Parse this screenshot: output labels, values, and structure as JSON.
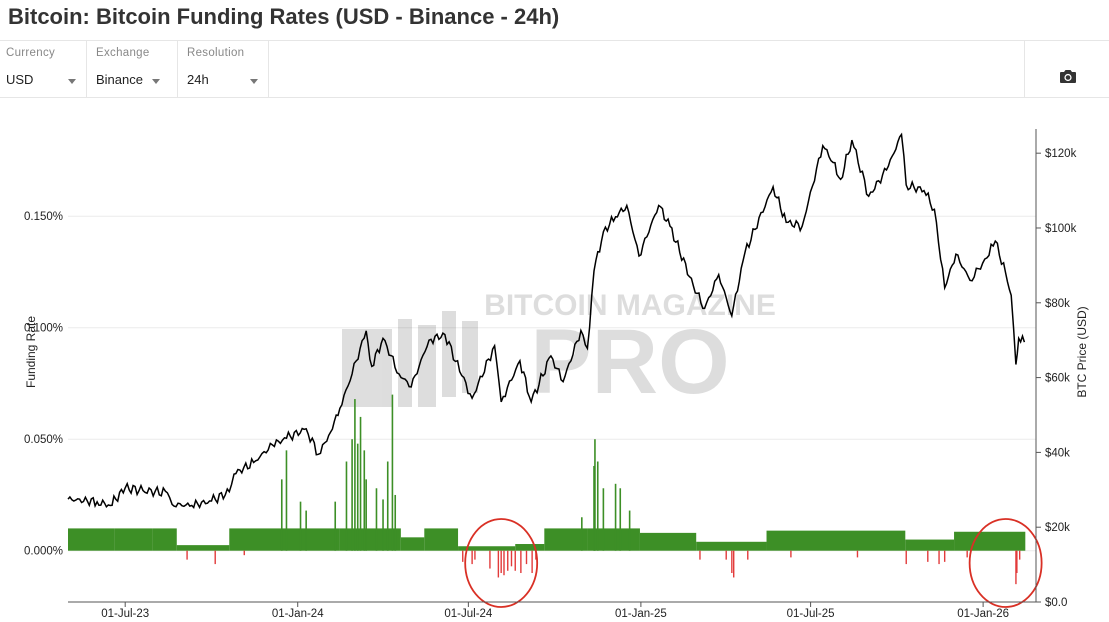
{
  "page_title": "Bitcoin: Bitcoin Funding Rates (USD - Binance - 24h)",
  "controls": [
    {
      "label": "Currency",
      "value": "USD"
    },
    {
      "label": "Exchange",
      "value": "Binance"
    },
    {
      "label": "Resolution",
      "value": "24h"
    }
  ],
  "camera_icon": "camera-icon",
  "watermark": {
    "line1": "BITCOIN MAGAZINE",
    "line2": "PRO"
  },
  "colors": {
    "positive": "#3d8f26",
    "negative": "#e23b3b",
    "price": "#000000",
    "highlight": "#d93025"
  },
  "chart_data": {
    "type": "bar+line",
    "title": "Bitcoin: Bitcoin Funding Rates (USD - Binance - 24h)",
    "ylabel_left": "Funding Rate",
    "ylabel_right": "BTC Price (USD)",
    "x_ticks": [
      "01-Jul-23",
      "01-Jan-24",
      "01-Jul-24",
      "01-Jan-25",
      "01-Jul-25",
      "01-Jan-26"
    ],
    "y_left_ticks": [
      "0.000%",
      "0.050%",
      "0.100%",
      "0.150%"
    ],
    "y_left_range_pct": [
      -0.023,
      0.19
    ],
    "y_right_ticks": [
      "$0.0",
      "$20k",
      "$40k",
      "$60k",
      "$80k",
      "$100k",
      "$120k"
    ],
    "y_right_range_usd": [
      0,
      127000
    ],
    "x_range": [
      "2023-05-01",
      "2026-02-20"
    ],
    "grid": true,
    "btc_price": {
      "name": "BTC Price (USD)",
      "points": [
        [
          "2023-05-01",
          27500
        ],
        [
          "2023-06-01",
          26800
        ],
        [
          "2023-06-15",
          25800
        ],
        [
          "2023-07-01",
          30500
        ],
        [
          "2023-07-20",
          29800
        ],
        [
          "2023-08-15",
          29200
        ],
        [
          "2023-08-20",
          26100
        ],
        [
          "2023-09-10",
          25800
        ],
        [
          "2023-10-01",
          27000
        ],
        [
          "2023-10-20",
          29500
        ],
        [
          "2023-10-25",
          34200
        ],
        [
          "2023-11-15",
          37300
        ],
        [
          "2023-12-05",
          42000
        ],
        [
          "2023-12-20",
          43800
        ],
        [
          "2024-01-10",
          46300
        ],
        [
          "2024-01-23",
          39500
        ],
        [
          "2024-02-01",
          43000
        ],
        [
          "2024-02-15",
          51800
        ],
        [
          "2024-02-28",
          61000
        ],
        [
          "2024-03-14",
          72500
        ],
        [
          "2024-03-20",
          63000
        ],
        [
          "2024-04-01",
          70500
        ],
        [
          "2024-04-18",
          61000
        ],
        [
          "2024-05-01",
          57500
        ],
        [
          "2024-05-20",
          70000
        ],
        [
          "2024-06-06",
          71500
        ],
        [
          "2024-06-24",
          60500
        ],
        [
          "2024-07-05",
          54500
        ],
        [
          "2024-07-29",
          68500
        ],
        [
          "2024-08-05",
          53500
        ],
        [
          "2024-08-25",
          64500
        ],
        [
          "2024-09-06",
          53500
        ],
        [
          "2024-09-27",
          65800
        ],
        [
          "2024-10-10",
          58900
        ],
        [
          "2024-10-29",
          72600
        ],
        [
          "2024-11-05",
          67800
        ],
        [
          "2024-11-12",
          88500
        ],
        [
          "2024-11-22",
          99000
        ],
        [
          "2024-12-05",
          103000
        ],
        [
          "2024-12-17",
          106000
        ],
        [
          "2024-12-30",
          92500
        ],
        [
          "2025-01-20",
          106000
        ],
        [
          "2025-02-01",
          100500
        ],
        [
          "2025-02-26",
          84500
        ],
        [
          "2025-03-10",
          78500
        ],
        [
          "2025-03-25",
          87500
        ],
        [
          "2025-04-08",
          76500
        ],
        [
          "2025-04-22",
          93500
        ],
        [
          "2025-05-22",
          111000
        ],
        [
          "2025-06-05",
          101500
        ],
        [
          "2025-06-22",
          100500
        ],
        [
          "2025-07-14",
          122000
        ],
        [
          "2025-07-25",
          117500
        ],
        [
          "2025-08-02",
          113000
        ],
        [
          "2025-08-14",
          123500
        ],
        [
          "2025-09-01",
          108500
        ],
        [
          "2025-09-20",
          115500
        ],
        [
          "2025-10-06",
          125000
        ],
        [
          "2025-10-11",
          111500
        ],
        [
          "2025-10-30",
          110000
        ],
        [
          "2025-11-10",
          105000
        ],
        [
          "2025-11-21",
          84000
        ],
        [
          "2025-12-03",
          93000
        ],
        [
          "2025-12-18",
          86000
        ],
        [
          "2026-01-05",
          92000
        ],
        [
          "2026-01-14",
          96500
        ],
        [
          "2026-01-25",
          88000
        ],
        [
          "2026-01-31",
          82000
        ],
        [
          "2026-02-05",
          63500
        ],
        [
          "2026-02-08",
          70500
        ],
        [
          "2026-02-14",
          69500
        ]
      ]
    },
    "funding_rate": {
      "name": "Funding Rate",
      "segments": [
        [
          "2023-05-01",
          "2023-06-20",
          0.01
        ],
        [
          "2023-06-20",
          "2023-07-30",
          0.01
        ],
        [
          "2023-07-30",
          "2023-08-25",
          0.01
        ],
        [
          "2023-08-25",
          "2023-10-20",
          0.0025
        ],
        [
          "2023-10-20",
          "2024-02-15",
          0.01
        ],
        [
          "2024-02-15",
          "2024-04-20",
          0.01
        ],
        [
          "2024-04-20",
          "2024-05-15",
          0.006
        ],
        [
          "2024-05-15",
          "2024-06-20",
          0.01
        ],
        [
          "2024-06-20",
          "2024-08-20",
          0.002
        ],
        [
          "2024-08-20",
          "2024-09-20",
          0.003
        ],
        [
          "2024-09-20",
          "2024-11-05",
          0.01
        ],
        [
          "2024-11-05",
          "2024-12-31",
          0.01
        ],
        [
          "2024-12-31",
          "2025-03-01",
          0.008
        ],
        [
          "2025-03-01",
          "2025-05-15",
          0.004
        ],
        [
          "2025-05-15",
          "2025-10-10",
          0.009
        ],
        [
          "2025-10-10",
          "2025-12-01",
          0.005
        ],
        [
          "2025-12-01",
          "2026-02-15",
          0.0085
        ]
      ],
      "spikes": [
        [
          "2023-12-15",
          0.032
        ],
        [
          "2023-12-20",
          0.045
        ],
        [
          "2024-01-04",
          0.022
        ],
        [
          "2024-01-10",
          0.018
        ],
        [
          "2024-02-10",
          0.022
        ],
        [
          "2024-02-22",
          0.04
        ],
        [
          "2024-02-28",
          0.05
        ],
        [
          "2024-03-02",
          0.068
        ],
        [
          "2024-03-05",
          0.048
        ],
        [
          "2024-03-08",
          0.06
        ],
        [
          "2024-03-12",
          0.045
        ],
        [
          "2024-03-14",
          0.032
        ],
        [
          "2024-03-25",
          0.028
        ],
        [
          "2024-04-01",
          0.023
        ],
        [
          "2024-04-06",
          0.04
        ],
        [
          "2024-04-11",
          0.07
        ],
        [
          "2024-04-14",
          0.025
        ],
        [
          "2024-10-30",
          0.015
        ],
        [
          "2024-11-12",
          0.038
        ],
        [
          "2024-11-13",
          0.05
        ],
        [
          "2024-11-16",
          0.04
        ],
        [
          "2024-11-22",
          0.028
        ],
        [
          "2024-12-05",
          0.03
        ],
        [
          "2024-12-10",
          0.028
        ],
        [
          "2024-12-20",
          0.018
        ]
      ],
      "negatives": [
        [
          "2023-09-05",
          -0.004
        ],
        [
          "2023-10-05",
          -0.006
        ],
        [
          "2023-11-05",
          -0.002
        ],
        [
          "2024-06-25",
          -0.005
        ],
        [
          "2024-07-05",
          -0.006
        ],
        [
          "2024-07-08",
          -0.004
        ],
        [
          "2024-07-24",
          -0.008
        ],
        [
          "2024-08-02",
          -0.012
        ],
        [
          "2024-08-05",
          -0.01
        ],
        [
          "2024-08-08",
          -0.011
        ],
        [
          "2024-08-12",
          -0.009
        ],
        [
          "2024-08-16",
          -0.007
        ],
        [
          "2024-08-20",
          -0.009
        ],
        [
          "2024-08-26",
          -0.01
        ],
        [
          "2024-09-01",
          -0.006
        ],
        [
          "2024-09-07",
          -0.01
        ],
        [
          "2024-09-11",
          -0.004
        ],
        [
          "2025-03-05",
          -0.004
        ],
        [
          "2025-04-02",
          -0.004
        ],
        [
          "2025-04-08",
          -0.01
        ],
        [
          "2025-04-10",
          -0.012
        ],
        [
          "2025-04-25",
          -0.004
        ],
        [
          "2025-06-10",
          -0.003
        ],
        [
          "2025-08-20",
          -0.003
        ],
        [
          "2025-10-11",
          -0.006
        ],
        [
          "2025-11-03",
          -0.005
        ],
        [
          "2025-11-15",
          -0.006
        ],
        [
          "2025-11-21",
          -0.005
        ],
        [
          "2025-12-15",
          -0.003
        ],
        [
          "2026-02-05",
          -0.015
        ],
        [
          "2026-02-06",
          -0.01
        ],
        [
          "2026-02-09",
          -0.004
        ]
      ],
      "highlights": [
        [
          "2024-08-05",
          "circle"
        ],
        [
          "2026-01-25",
          "circle"
        ]
      ]
    }
  }
}
